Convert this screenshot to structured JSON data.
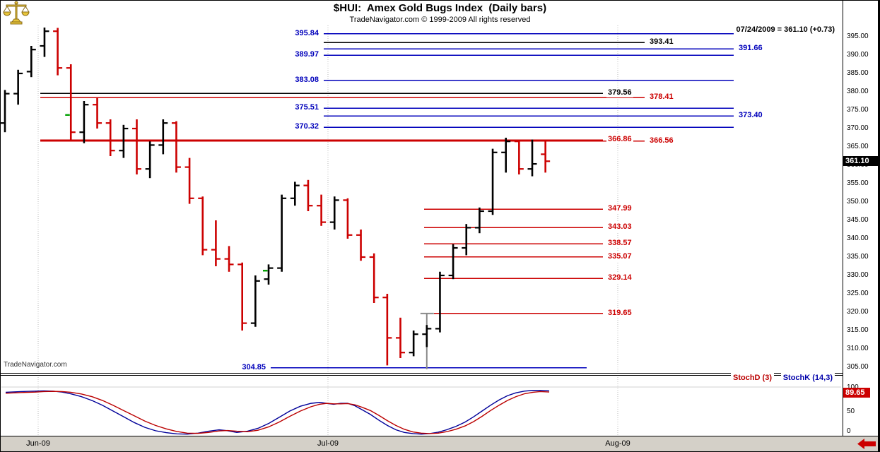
{
  "header": {
    "title": "$HUI:  Amex Gold Bugs Index  (Daily bars)",
    "copyright": "TradeNavigator.com © 1999-2009 All rights reserved",
    "quote": "07/24/2009 = 361.10 (+0.73)",
    "watermark": "TradeNavigator.com"
  },
  "badges": {
    "last_price": "361.10",
    "stoch_value": "89.65"
  },
  "colors": {
    "up_bar": "#000000",
    "down_bar": "#cc0000",
    "level_blue": "#0000bb",
    "level_red": "#cc0000",
    "level_black": "#000000",
    "stoch_d": "#bb0000",
    "stoch_k": "#000099",
    "signal_green": "#00a000",
    "swing_gray": "#8a8a8a",
    "grid_gray": "#bdbdbd",
    "price_badge_bg": "#000000",
    "stoch_badge_bg": "#cc0000",
    "xaxis_bar_bg": "#d4d0c8"
  },
  "chart_data": {
    "type": "bar",
    "subtype": "ohlc-daily-bars",
    "symbol": "$HUI",
    "last": 361.1,
    "bar_format": [
      "date",
      "open",
      "high",
      "low",
      "close"
    ],
    "bars": [
      [
        "05/27",
        371.5,
        380.5,
        369.0,
        379.5
      ],
      [
        "05/28",
        379.5,
        386.0,
        376.5,
        385.0
      ],
      [
        "05/29",
        385.5,
        392.5,
        384.0,
        391.5
      ],
      [
        "06/01",
        392.5,
        397.5,
        389.5,
        396.5
      ],
      [
        "06/02",
        396.5,
        397.4,
        384.5,
        386.5
      ],
      [
        "06/03",
        386.5,
        387.5,
        366.5,
        369.0
      ],
      [
        "06/04",
        369.0,
        377.5,
        366.0,
        376.5
      ],
      [
        "06/05",
        376.5,
        378.5,
        370.0,
        371.5
      ],
      [
        "06/08",
        371.5,
        372.5,
        362.5,
        364.0
      ],
      [
        "06/09",
        364.0,
        371.0,
        362.0,
        370.0
      ],
      [
        "06/10",
        370.0,
        372.5,
        357.5,
        359.0
      ],
      [
        "06/11",
        359.0,
        366.5,
        356.5,
        365.5
      ],
      [
        "06/12",
        365.5,
        372.5,
        363.0,
        371.5
      ],
      [
        "06/15",
        371.5,
        372.0,
        358.0,
        359.5
      ],
      [
        "06/16",
        359.5,
        362.0,
        349.5,
        351.0
      ],
      [
        "06/17",
        351.0,
        351.5,
        335.5,
        337.0
      ],
      [
        "06/18",
        337.0,
        345.0,
        332.5,
        334.5
      ],
      [
        "06/19",
        334.5,
        338.0,
        331.0,
        333.0
      ],
      [
        "06/22",
        333.0,
        333.5,
        315.0,
        317.0
      ],
      [
        "06/23",
        317.0,
        330.0,
        316.0,
        328.5
      ],
      [
        "06/24",
        329.0,
        333.0,
        327.5,
        332.0
      ],
      [
        "06/25",
        332.0,
        352.0,
        331.0,
        351.0
      ],
      [
        "06/26",
        351.0,
        355.5,
        349.0,
        354.5
      ],
      [
        "06/29",
        354.5,
        356.0,
        347.5,
        349.0
      ],
      [
        "06/30",
        349.0,
        352.0,
        343.5,
        344.5
      ],
      [
        "07/01",
        344.5,
        351.5,
        342.5,
        350.5
      ],
      [
        "07/02",
        350.5,
        351.0,
        340.0,
        341.0
      ],
      [
        "07/06",
        341.0,
        342.5,
        334.0,
        335.0
      ],
      [
        "07/07",
        335.0,
        336.0,
        322.5,
        324.0
      ],
      [
        "07/08",
        324.0,
        325.0,
        305.5,
        313.0
      ],
      [
        "07/09",
        313.0,
        318.5,
        307.5,
        309.0
      ],
      [
        "07/10",
        309.0,
        315.0,
        308.0,
        314.0
      ],
      [
        "07/13",
        314.0,
        316.5,
        310.5,
        315.5
      ],
      [
        "07/14",
        315.5,
        331.0,
        314.5,
        330.0
      ],
      [
        "07/15",
        330.0,
        338.5,
        329.0,
        337.5
      ],
      [
        "07/16",
        337.5,
        344.0,
        335.5,
        343.0
      ],
      [
        "07/17",
        343.0,
        348.5,
        341.5,
        347.5
      ],
      [
        "07/20",
        347.5,
        364.5,
        346.5,
        363.5
      ],
      [
        "07/21",
        363.5,
        367.5,
        358.0,
        366.5
      ],
      [
        "07/22",
        366.5,
        367.0,
        357.5,
        359.0
      ],
      [
        "07/23",
        359.0,
        367.0,
        357.0,
        360.37
      ],
      [
        "07/24",
        363.0,
        366.5,
        358.0,
        361.1
      ]
    ],
    "level_format": [
      "price",
      "color",
      "x1",
      "x2",
      "label_side",
      "label_x"
    ],
    "levels": [
      [
        395.84,
        "blue",
        458,
        1038,
        "left",
        453
      ],
      [
        393.41,
        "black",
        458,
        912,
        "right",
        917
      ],
      [
        391.66,
        "blue",
        458,
        1038,
        "right",
        1043
      ],
      [
        389.97,
        "blue",
        458,
        1038,
        "left",
        453
      ],
      [
        383.08,
        "blue",
        458,
        1038,
        "left",
        453
      ],
      [
        379.56,
        "black",
        57,
        853,
        "right",
        858
      ],
      [
        378.41,
        "red",
        57,
        912,
        "right",
        917
      ],
      [
        375.51,
        "blue",
        458,
        1038,
        "left",
        453
      ],
      [
        373.4,
        "blue",
        458,
        1038,
        "right",
        1043
      ],
      [
        370.32,
        "blue",
        458,
        1038,
        "left",
        453
      ],
      [
        366.86,
        "red",
        57,
        853,
        "right",
        858
      ],
      [
        366.56,
        "red",
        57,
        912,
        "right",
        917
      ],
      [
        347.99,
        "red",
        600,
        853,
        "right",
        858
      ],
      [
        343.03,
        "red",
        600,
        853,
        "right",
        858
      ],
      [
        338.57,
        "red",
        600,
        853,
        "right",
        858
      ],
      [
        335.07,
        "red",
        600,
        853,
        "right",
        858
      ],
      [
        329.14,
        "red",
        600,
        853,
        "right",
        858
      ],
      [
        319.65,
        "red",
        614,
        853,
        "right",
        858
      ],
      [
        304.85,
        "blue",
        383,
        830,
        "left",
        378
      ]
    ],
    "signals": [
      [
        5,
        373.7
      ],
      [
        20,
        331.3
      ]
    ],
    "swing_marker": {
      "bar": 32,
      "from": 319.65,
      "to": 304.85
    },
    "price_axis": {
      "labels": [
        "395.00",
        "390.00",
        "385.00",
        "380.00",
        "375.00",
        "370.00",
        "365.00",
        "360.00",
        "355.00",
        "350.00",
        "345.00",
        "340.00",
        "335.00",
        "330.00",
        "325.00",
        "320.00",
        "315.00",
        "310.00",
        "305.00"
      ],
      "max": 395,
      "step": 5
    },
    "x_axis": {
      "months": [
        [
          "Jun-09",
          54
        ],
        [
          "Jul-09",
          464
        ],
        [
          "Aug-09",
          874
        ]
      ]
    },
    "stoch": {
      "legend_d": "StochD (3)",
      "legend_k": "StochK (14,3)",
      "last": 89.65,
      "axis": [
        [
          "100",
          100
        ],
        [
          "50",
          50
        ],
        [
          "0",
          0
        ]
      ],
      "ylim": [
        0,
        100
      ],
      "d": [
        [
          8,
          87
        ],
        [
          30,
          88.5
        ],
        [
          50,
          89.5
        ],
        [
          62,
          90.5
        ],
        [
          75,
          91
        ],
        [
          88,
          90.5
        ],
        [
          100,
          89
        ],
        [
          115,
          85.5
        ],
        [
          130,
          80
        ],
        [
          145,
          72
        ],
        [
          160,
          62
        ],
        [
          175,
          51
        ],
        [
          190,
          40
        ],
        [
          205,
          29
        ],
        [
          220,
          20
        ],
        [
          235,
          13
        ],
        [
          250,
          7.5
        ],
        [
          265,
          4
        ],
        [
          280,
          3.5
        ],
        [
          295,
          5.5
        ],
        [
          310,
          8.5
        ],
        [
          322,
          9.5
        ],
        [
          335,
          8
        ],
        [
          350,
          7
        ],
        [
          365,
          10
        ],
        [
          380,
          17
        ],
        [
          395,
          27
        ],
        [
          410,
          39
        ],
        [
          425,
          50
        ],
        [
          440,
          59
        ],
        [
          452,
          64
        ],
        [
          462,
          66
        ],
        [
          472,
          65
        ],
        [
          482,
          65
        ],
        [
          492,
          65.5
        ],
        [
          502,
          63
        ],
        [
          512,
          58
        ],
        [
          524,
          51
        ],
        [
          536,
          41
        ],
        [
          548,
          30
        ],
        [
          560,
          20
        ],
        [
          572,
          12
        ],
        [
          584,
          6.5
        ],
        [
          596,
          4
        ],
        [
          608,
          3
        ],
        [
          620,
          4
        ],
        [
          632,
          7
        ],
        [
          645,
          12
        ],
        [
          658,
          19
        ],
        [
          670,
          28
        ],
        [
          682,
          39
        ],
        [
          694,
          51
        ],
        [
          706,
          62
        ],
        [
          718,
          72
        ],
        [
          730,
          80
        ],
        [
          742,
          86
        ],
        [
          754,
          89
        ],
        [
          764,
          90.5
        ],
        [
          772,
          90
        ],
        [
          777,
          89.65
        ]
      ],
      "k": [
        [
          8,
          89
        ],
        [
          30,
          90.5
        ],
        [
          50,
          91.5
        ],
        [
          62,
          92
        ],
        [
          75,
          91.5
        ],
        [
          88,
          89.5
        ],
        [
          100,
          86
        ],
        [
          115,
          80
        ],
        [
          130,
          72
        ],
        [
          145,
          62
        ],
        [
          160,
          50
        ],
        [
          175,
          38
        ],
        [
          190,
          26
        ],
        [
          205,
          16
        ],
        [
          220,
          9
        ],
        [
          235,
          5
        ],
        [
          250,
          2.5
        ],
        [
          265,
          2
        ],
        [
          280,
          4
        ],
        [
          295,
          8
        ],
        [
          310,
          11
        ],
        [
          322,
          9
        ],
        [
          335,
          5.5
        ],
        [
          350,
          8
        ],
        [
          365,
          14
        ],
        [
          380,
          24
        ],
        [
          395,
          37
        ],
        [
          410,
          50
        ],
        [
          425,
          60
        ],
        [
          440,
          66
        ],
        [
          452,
          68
        ],
        [
          462,
          66
        ],
        [
          472,
          64
        ],
        [
          482,
          66
        ],
        [
          492,
          66
        ],
        [
          502,
          61
        ],
        [
          512,
          53
        ],
        [
          524,
          43
        ],
        [
          536,
          31
        ],
        [
          548,
          20
        ],
        [
          560,
          11
        ],
        [
          572,
          5.5
        ],
        [
          584,
          3
        ],
        [
          596,
          2
        ],
        [
          608,
          3
        ],
        [
          620,
          6
        ],
        [
          632,
          11
        ],
        [
          645,
          18
        ],
        [
          658,
          27
        ],
        [
          670,
          38
        ],
        [
          682,
          50
        ],
        [
          694,
          62
        ],
        [
          706,
          73
        ],
        [
          718,
          82
        ],
        [
          730,
          88
        ],
        [
          742,
          91.5
        ],
        [
          754,
          93
        ],
        [
          764,
          93
        ],
        [
          772,
          92.5
        ],
        [
          777,
          92
        ]
      ]
    }
  }
}
